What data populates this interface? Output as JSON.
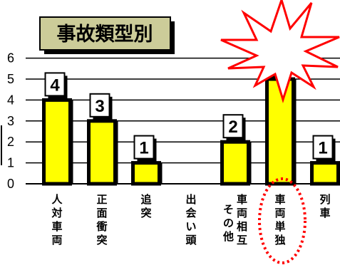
{
  "chart_data": {
    "type": "bar",
    "title": "事故類型別",
    "categories": [
      "人対車両",
      "正面衝突",
      "追突",
      "出会い頭",
      "車両相互 その他",
      "車両単独",
      "列車"
    ],
    "category_columns": [
      [
        "人対車両"
      ],
      [
        "正面衝突"
      ],
      [
        "追突"
      ],
      [
        "出会い頭"
      ],
      [
        "車両相互",
        "その他"
      ],
      [
        "車両単独"
      ],
      [
        "列車"
      ]
    ],
    "values": [
      4,
      3,
      1,
      0,
      2,
      5,
      1
    ],
    "ylim": [
      0,
      6
    ],
    "yticks": [
      0,
      1,
      2,
      3,
      4,
      5,
      6
    ],
    "grid": true,
    "highlight_category": "車両単独",
    "colors": {
      "bar_fill": "#ffff00",
      "bar_edge": "#000000",
      "title_bg": "#cccc99",
      "burst_fill": "#ffffff",
      "burst_edge": "#ff0000",
      "circle_edge": "#ff0000"
    }
  }
}
